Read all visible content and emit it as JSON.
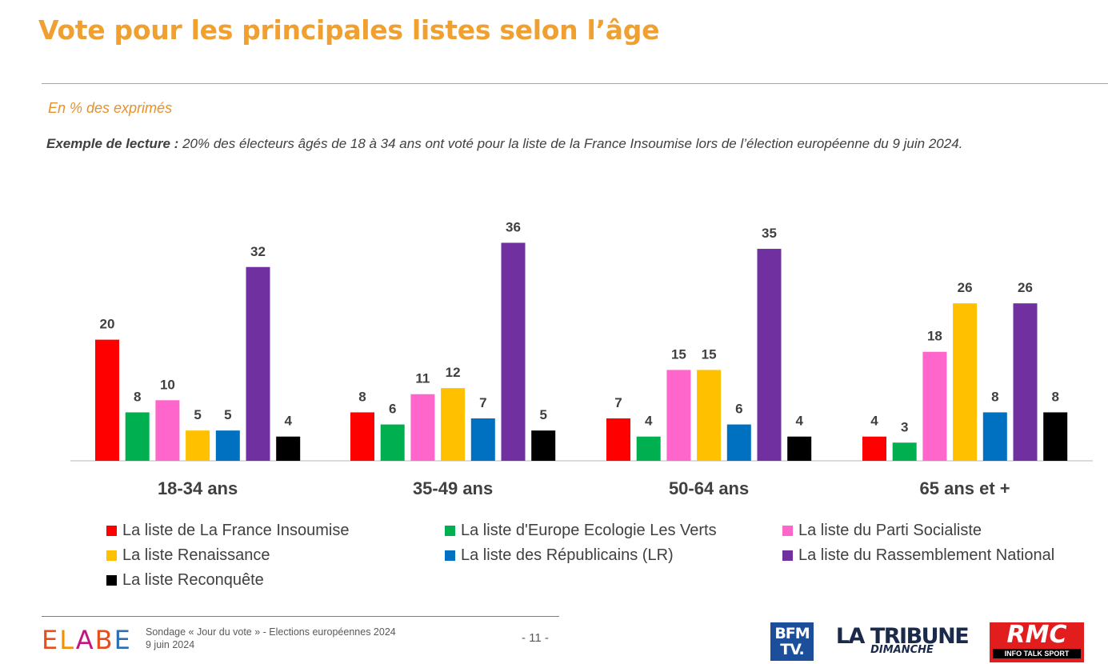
{
  "header": {
    "title": "Vote pour les principales listes selon l’âge",
    "subtitle": "En % des exprimés",
    "reading_label": "Exemple de lecture :",
    "reading_text": " 20% des électeurs âgés de 18 à 34 ans ont voté pour la liste de la France Insoumise lors de l’élection européenne du 9 juin 2024."
  },
  "chart_data": {
    "type": "bar",
    "categories": [
      "18-34 ans",
      "35-49 ans",
      "50-64 ans",
      "65 ans et +"
    ],
    "series": [
      {
        "name": "La liste de La France Insoumise",
        "color": "#ff0000",
        "values": [
          20,
          8,
          7,
          4
        ]
      },
      {
        "name": "La liste d'Europe Ecologie Les Verts",
        "color": "#00b050",
        "values": [
          8,
          6,
          4,
          3
        ]
      },
      {
        "name": "La liste du Parti Socialiste",
        "color": "#ff66cc",
        "values": [
          10,
          11,
          15,
          18
        ]
      },
      {
        "name": "La liste Renaissance",
        "color": "#ffc000",
        "values": [
          5,
          12,
          15,
          26
        ]
      },
      {
        "name": "La liste des Républicains (LR)",
        "color": "#0070c0",
        "values": [
          5,
          7,
          6,
          8
        ]
      },
      {
        "name": "La liste du Rassemblement National",
        "color": "#7030a0",
        "values": [
          32,
          36,
          35,
          26
        ]
      },
      {
        "name": "La liste Reconquête",
        "color": "#000000",
        "values": [
          4,
          5,
          4,
          8
        ]
      }
    ],
    "ylim": [
      0,
      36
    ],
    "data_labels": true,
    "grid": false,
    "legend_position": "bottom"
  },
  "footer": {
    "brand": "ELABE",
    "brand_colors": [
      "#e84e1b",
      "#f29100",
      "#c0177f",
      "#e84e1b",
      "#2a6fb5"
    ],
    "survey_line": "Sondage « Jour du vote » - Elections européennes 2024",
    "date_line": "9 juin 2024",
    "page": "- 11 -",
    "logos": {
      "bfm_line1": "BFM",
      "bfm_line2": "TV.",
      "tribune_line1": "LA TRIBUNE",
      "tribune_line2": "DIMANCHE",
      "rmc_line1": "RMC",
      "rmc_line2": "INFO TALK SPORT"
    }
  }
}
